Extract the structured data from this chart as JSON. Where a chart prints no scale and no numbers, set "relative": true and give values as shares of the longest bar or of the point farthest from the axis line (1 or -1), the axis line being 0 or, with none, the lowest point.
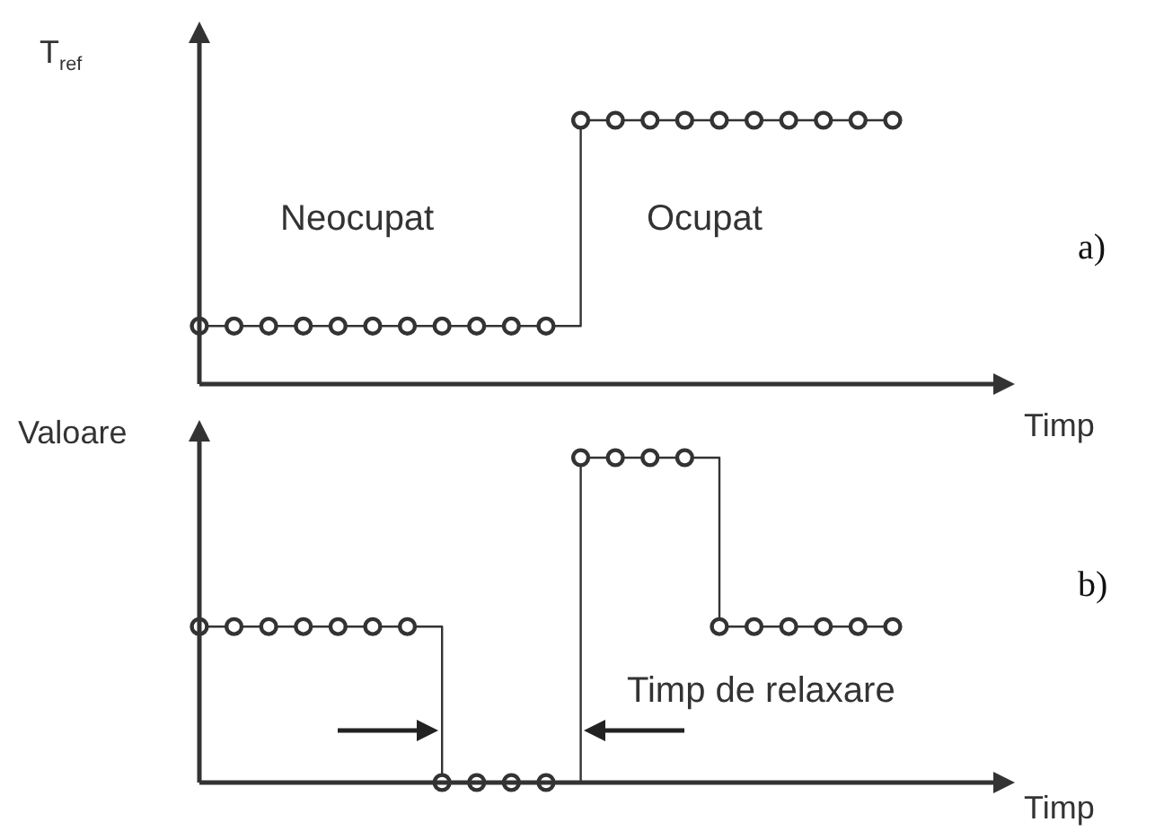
{
  "chart_data": [
    {
      "type": "step",
      "xlabel": "Timp",
      "ylabel": "T$_{ref}$",
      "relative": true,
      "tick_labels": false,
      "marker": "circle",
      "color": "#333333",
      "categories": [
        null,
        null,
        null,
        null,
        null,
        null,
        null,
        null,
        null,
        null,
        null,
        null,
        null,
        null,
        null,
        null,
        null,
        null,
        null,
        null,
        null
      ],
      "values": [
        0.22,
        0.22,
        0.22,
        0.22,
        0.22,
        0.22,
        0.22,
        0.22,
        0.22,
        0.22,
        0.22,
        1,
        1,
        1,
        1,
        1,
        1,
        1,
        1,
        1,
        1
      ],
      "annotations": [
        "Neocupat",
        "Ocupat",
        "a)"
      ]
    },
    {
      "type": "step",
      "xlabel": "Timp",
      "ylabel": "Valoare",
      "relative": true,
      "tick_labels": false,
      "marker": "circle",
      "color": "#333333",
      "categories": [
        null,
        null,
        null,
        null,
        null,
        null,
        null,
        null,
        null,
        null,
        null,
        null,
        null,
        null,
        null,
        null,
        null,
        null,
        null,
        null,
        null
      ],
      "values": [
        0.48,
        0.48,
        0.48,
        0.48,
        0.48,
        0.48,
        0.48,
        0,
        0,
        0,
        0,
        1,
        1,
        1,
        1,
        0.48,
        0.48,
        0.48,
        0.48,
        0.48,
        0.48
      ],
      "annotations": [
        "Timp de relaxare",
        "b)"
      ]
    }
  ]
}
